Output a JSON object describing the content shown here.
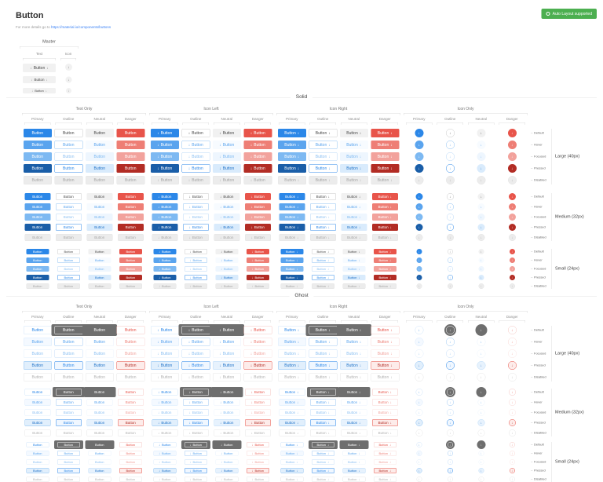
{
  "header": {
    "title": "Button",
    "subtitle_prefix": "For more details go to",
    "subtitle_link": "https://material.io/components/buttons",
    "badge": {
      "label": "Auto Layout supported",
      "color": "#4caf50"
    }
  },
  "master": {
    "title": "Master",
    "columns": [
      "Text",
      "Icon"
    ],
    "button_label": "Button",
    "icon_glyph": "↓"
  },
  "grid": {
    "sections": [
      "Solid",
      "Ghost"
    ],
    "groups": [
      "Text Only",
      "Icon Left",
      "Icon Right",
      "Icon Only"
    ],
    "variants": [
      "Primary",
      "Outline",
      "Neutral",
      "Danger"
    ],
    "states": [
      "Default",
      "Hover",
      "Focused",
      "Pressed",
      "Disabled"
    ],
    "size_labels": [
      "Large (40px)",
      "Medium (32px)",
      "Small (24px)"
    ],
    "button_label": "Button",
    "icon_glyph": "↓"
  },
  "colors": {
    "primary": "#2b87e8",
    "danger": "#e8544a",
    "success": "#4caf50",
    "neutral_text": "#4a4a4a",
    "dark_backdrop": "#6e6e6e"
  }
}
